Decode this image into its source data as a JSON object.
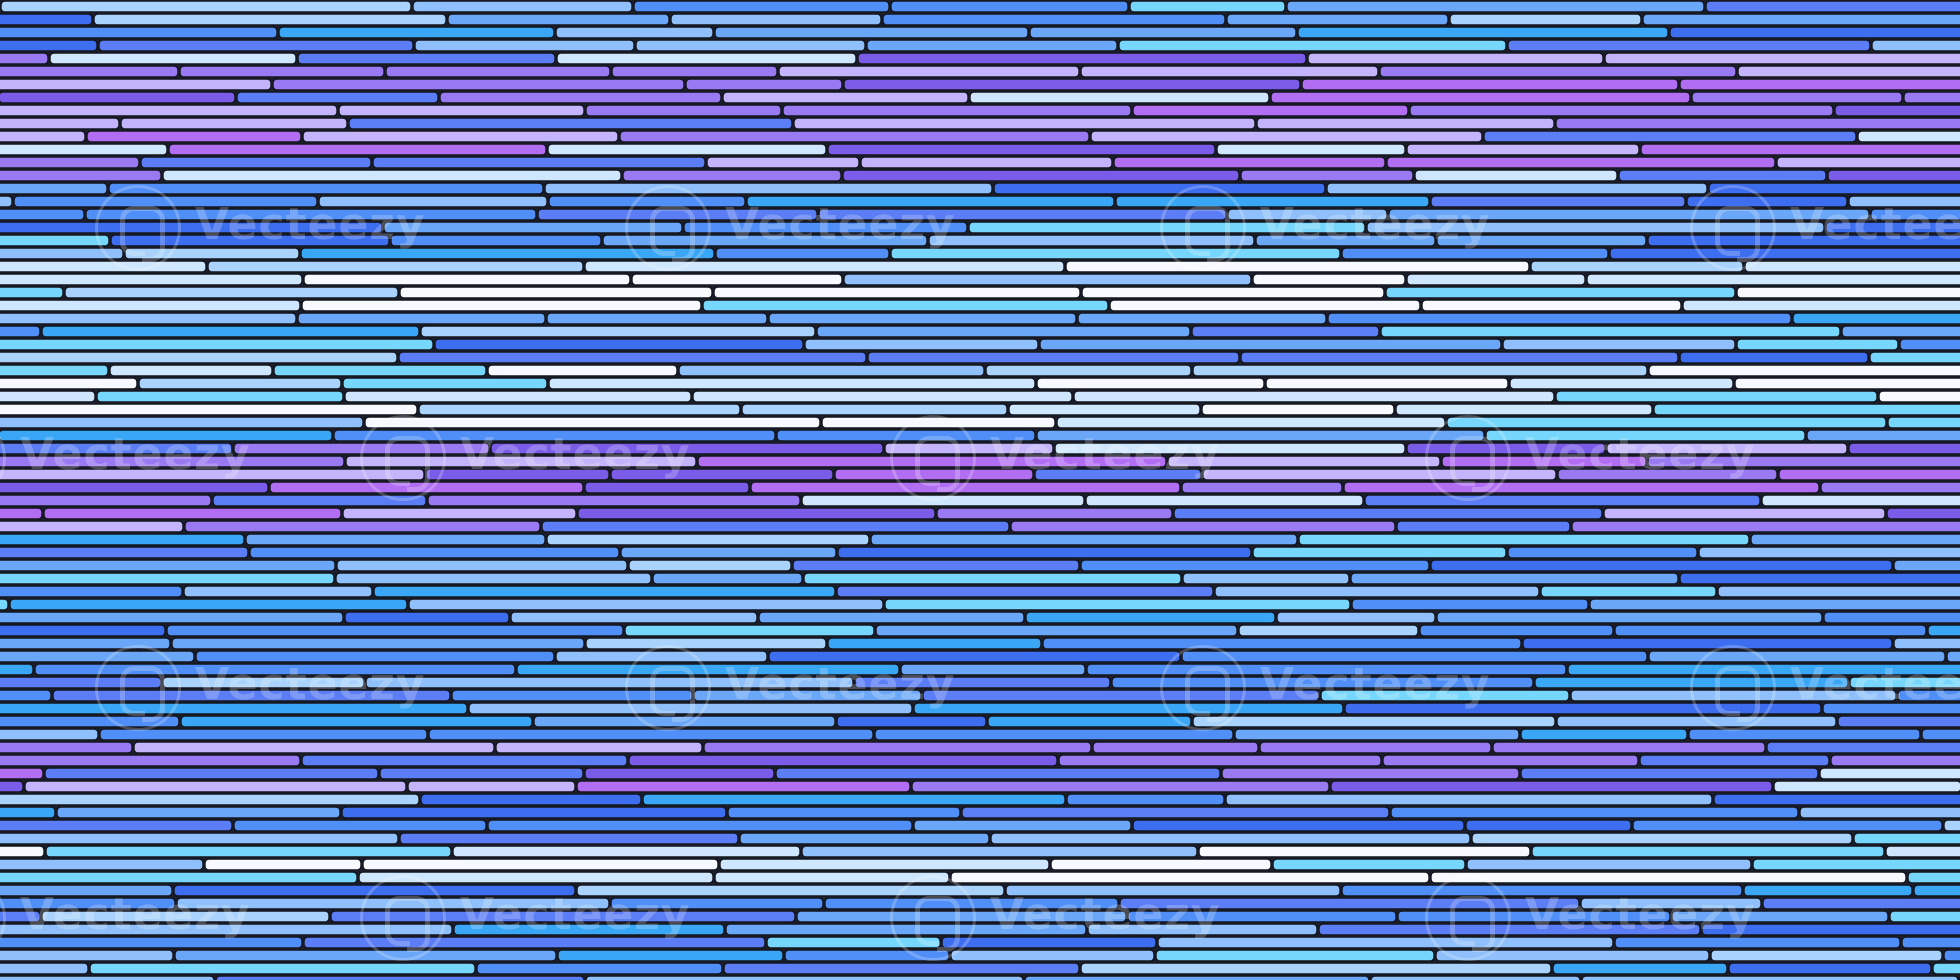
{
  "image": {
    "subject": "horizontal rounded stripe pattern",
    "palette": [
      "#5b7df5",
      "#4f8ff7",
      "#6aa7f8",
      "#8fc0fb",
      "#a9d3fd",
      "#cfe6ff",
      "#f6f9ff",
      "#c3b4fb",
      "#9a7af2",
      "#7a5ce8",
      "#b26ef3",
      "#3d6ef0",
      "#39a6f6",
      "#76d6fb"
    ],
    "stroke_color": "#14161f",
    "watermark": {
      "text": "Vecteezy"
    }
  }
}
